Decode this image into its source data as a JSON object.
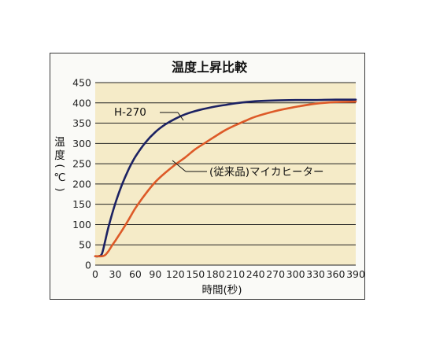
{
  "chart_data": {
    "type": "line",
    "title": "温度上昇比較",
    "xlabel": "時間(秒)",
    "ylabel_chars": [
      "温",
      "度",
      "(",
      "℃",
      ")"
    ],
    "xlim": [
      0,
      390
    ],
    "ylim": [
      0,
      450
    ],
    "xticks": [
      0,
      30,
      60,
      90,
      120,
      150,
      180,
      210,
      240,
      270,
      300,
      330,
      360,
      390
    ],
    "yticks": [
      0,
      50,
      100,
      150,
      200,
      250,
      300,
      350,
      400,
      450
    ],
    "grid": "horizontal",
    "colors": {
      "plot_bg": "#f5ebc8",
      "grid": "#222222",
      "frame_bg": "#fafaf7"
    },
    "series": [
      {
        "name": "H-270",
        "color": "#1c2263",
        "x": [
          0,
          5,
          10,
          15,
          20,
          30,
          40,
          50,
          60,
          75,
          90,
          105,
          120,
          135,
          150,
          165,
          180,
          195,
          210,
          240,
          270,
          300,
          330,
          360,
          390
        ],
        "y": [
          22,
          22,
          28,
          60,
          95,
          152,
          198,
          236,
          267,
          302,
          328,
          347,
          361,
          372,
          380,
          386,
          391,
          395,
          399,
          404,
          406,
          407,
          407,
          408,
          408
        ]
      },
      {
        "name": "(従来品)マイカヒーター",
        "color": "#dd5a28",
        "x": [
          0,
          10,
          15,
          20,
          25,
          30,
          40,
          50,
          60,
          75,
          90,
          105,
          120,
          135,
          150,
          165,
          180,
          195,
          210,
          225,
          240,
          270,
          300,
          330,
          360,
          390
        ],
        "y": [
          22,
          22,
          25,
          35,
          48,
          60,
          85,
          112,
          140,
          175,
          205,
          228,
          248,
          266,
          286,
          302,
          318,
          333,
          345,
          356,
          366,
          380,
          390,
          398,
          402,
          403
        ]
      }
    ]
  }
}
